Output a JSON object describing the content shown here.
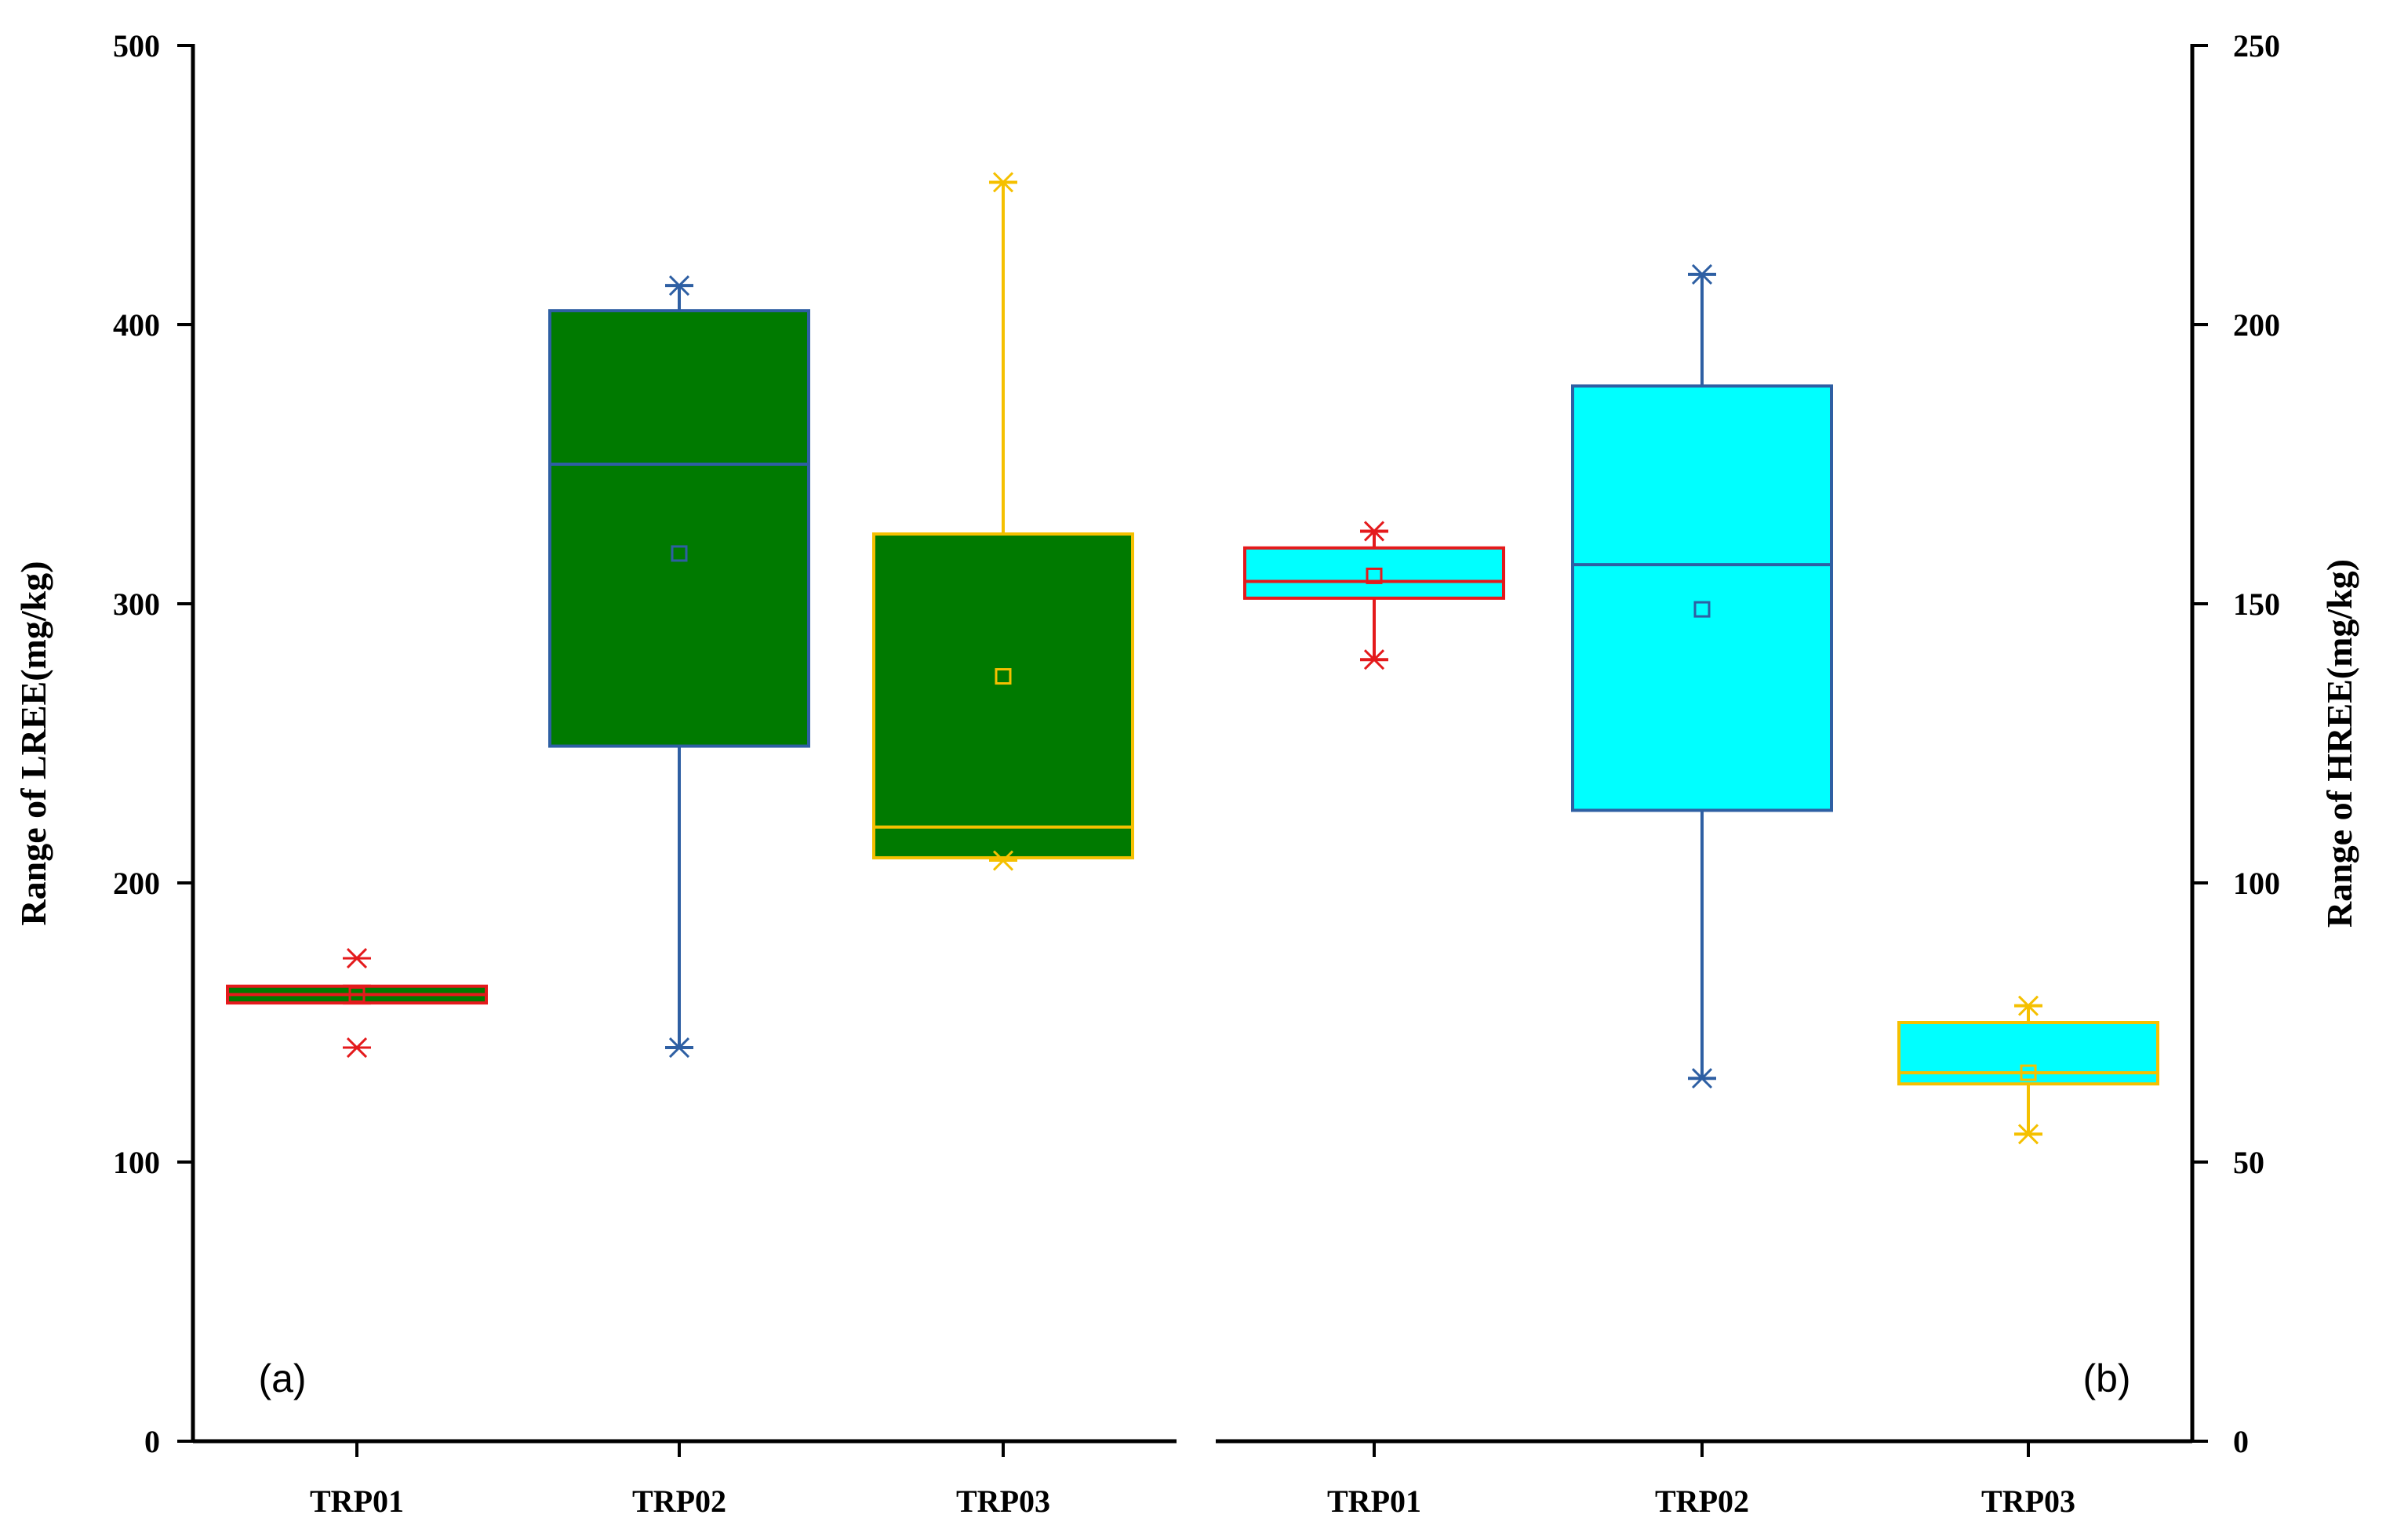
{
  "chart_data": [
    {
      "type": "box",
      "panel_label": "(a)",
      "ylabel": "Range of LREE(mg/kg)",
      "y_axis_side": "left",
      "ylim": [
        0,
        500
      ],
      "yticks": [
        0,
        100,
        200,
        300,
        400,
        500
      ],
      "yticklabels": [
        "0",
        "100",
        "200",
        "300",
        "400",
        "500"
      ],
      "categories": [
        "TRP01",
        "TRP02",
        "TRP03"
      ],
      "fill_color": "#007a00",
      "boxes": [
        {
          "category": "TRP01",
          "q1": 157,
          "median": 160,
          "q3": 163,
          "mean": 160,
          "whisker_min": 157,
          "whisker_max": 163,
          "min": 141,
          "max": 173,
          "edge_color": "#e41a1c"
        },
        {
          "category": "TRP02",
          "q1": 249,
          "median": 350,
          "q3": 405,
          "mean": 318,
          "whisker_min": 141,
          "whisker_max": 414,
          "min": 141,
          "max": 414,
          "edge_color": "#2e5fa3"
        },
        {
          "category": "TRP03",
          "q1": 209,
          "median": 220,
          "q3": 325,
          "mean": 274,
          "whisker_min": 209,
          "whisker_max": 451,
          "min": 208,
          "max": 451,
          "edge_color": "#f5c000"
        }
      ]
    },
    {
      "type": "box",
      "panel_label": "(b)",
      "ylabel": "Range of HREE(mg/kg)",
      "y_axis_side": "right",
      "ylim": [
        0,
        250
      ],
      "yticks": [
        0,
        50,
        100,
        150,
        200,
        250
      ],
      "yticklabels": [
        "0",
        "50",
        "100",
        "150",
        "200",
        "250"
      ],
      "categories": [
        "TRP01",
        "TRP02",
        "TRP03"
      ],
      "fill_color": "#00ffff",
      "boxes": [
        {
          "category": "TRP01",
          "q1": 151,
          "median": 154,
          "q3": 160,
          "mean": 155,
          "whisker_min": 140,
          "whisker_max": 163,
          "min": 140,
          "max": 163,
          "edge_color": "#e41a1c"
        },
        {
          "category": "TRP02",
          "q1": 113,
          "median": 157,
          "q3": 189,
          "mean": 149,
          "whisker_min": 65,
          "whisker_max": 209,
          "min": 65,
          "max": 209,
          "edge_color": "#2e5fa3"
        },
        {
          "category": "TRP03",
          "q1": 64,
          "median": 66,
          "q3": 75,
          "mean": 66,
          "whisker_min": 55,
          "whisker_max": 78,
          "min": 55,
          "max": 78,
          "edge_color": "#f5c000"
        }
      ]
    }
  ]
}
